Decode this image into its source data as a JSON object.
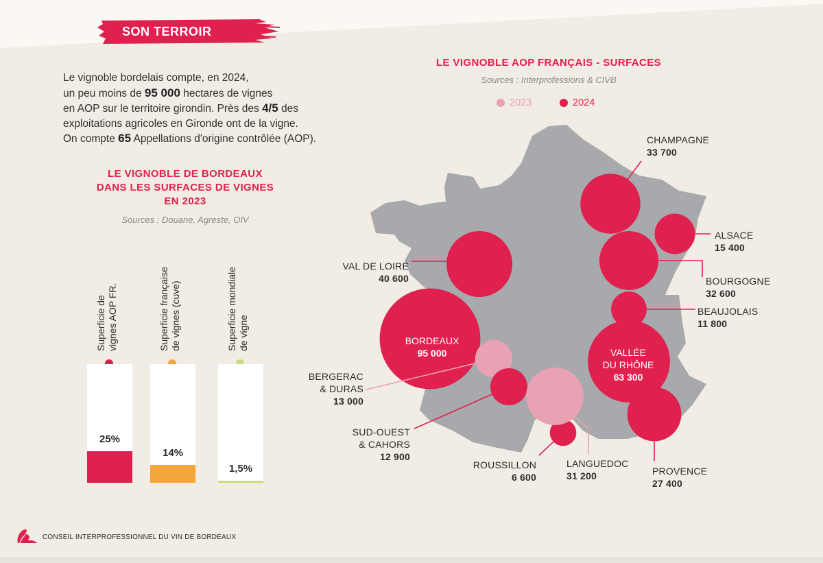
{
  "header": {
    "tag": "SON TERROIR"
  },
  "intro": {
    "l1": "Le vignoble bordelais compte, en 2024,",
    "l2a": "un peu moins de ",
    "l2b": "95 000",
    "l2c": " hectares de vignes",
    "l3a": "en AOP sur le territoire girondin. Près des ",
    "l3b": "4/5",
    "l3c": " des",
    "l4": "exploitations agricoles en Gironde ont de la vigne.",
    "l5a": "On compte ",
    "l5b": "65",
    "l5c": " Appellations d'origine contrôlée (AOP)."
  },
  "left_chart": {
    "title_l1": "LE VIGNOBLE DE BORDEAUX",
    "title_l2": "DANS LES SURFACES DE VIGNES",
    "title_l3": "EN 2023",
    "sources": "Sources : Douane, Agreste, OIV"
  },
  "right_chart": {
    "title": "LE VIGNOBLE AOP FRANÇAIS - SURFACES",
    "sources": "Sources : Interprofessions & CIVB",
    "legend": [
      {
        "label": "2023",
        "color": "#e8a2b3"
      },
      {
        "label": "2024",
        "color": "#e0204e"
      }
    ]
  },
  "chart_data": [
    {
      "type": "bar",
      "title": "LE VIGNOBLE DE BORDEAUX DANS LES SURFACES DE VIGNES EN 2023",
      "categories_l1": [
        "Superficie de",
        "Superficie française",
        "Superficie mondiale"
      ],
      "categories_l2": [
        "vignes AOP FR.",
        "de vignes (cuve)",
        "de vigne"
      ],
      "values": [
        25,
        14,
        1.5
      ],
      "labels": [
        "25%",
        "14%",
        "1,5%"
      ],
      "colors": [
        "#e0204e",
        "#f4a63a",
        "#c9dc7a"
      ],
      "ylim": [
        0,
        100
      ]
    },
    {
      "type": "bubble-map",
      "title": "LE VIGNOBLE AOP FRANÇAIS - SURFACES",
      "unit": "ha",
      "regions": [
        {
          "name": "CHAMPAGNE",
          "value_label": "33 700",
          "value": 33700,
          "year": "2024"
        },
        {
          "name": "ALSACE",
          "value_label": "15 400",
          "value": 15400,
          "year": "2024"
        },
        {
          "name": "VAL DE LOIRE",
          "value_label": "40 600",
          "value": 40600,
          "year": "2024"
        },
        {
          "name": "BOURGOGNE",
          "value_label": "32 600",
          "value": 32600,
          "year": "2024"
        },
        {
          "name": "BEAUJOLAIS",
          "value_label": "11 800",
          "value": 11800,
          "year": "2024"
        },
        {
          "name": "BORDEAUX",
          "value_label": "95 000",
          "value": 95000,
          "year": "2024"
        },
        {
          "name_l1": "VALLÉE",
          "name_l2": "DU RHÔNE",
          "value_label": "63 300",
          "value": 63300,
          "year": "2024"
        },
        {
          "name_l1": "BERGERAC",
          "name_l2": "& DURAS",
          "value_label": "13 000",
          "value": 13000,
          "year": "2023"
        },
        {
          "name_l1": "SUD-OUEST",
          "name_l2": "& CAHORS",
          "value_label": "12 900",
          "value": 12900,
          "year": "2024"
        },
        {
          "name": "ROUSSILLON",
          "value_label": "6 600",
          "value": 6600,
          "year": "2024"
        },
        {
          "name": "LANGUEDOC",
          "value_label": "31 200",
          "value": 31200,
          "year": "2023"
        },
        {
          "name": "PROVENCE",
          "value_label": "27 400",
          "value": 27400,
          "year": "2024"
        }
      ]
    }
  ],
  "footer": {
    "org": "CONSEIL INTERPROFESSIONNEL DU VIN DE BORDEAUX"
  }
}
